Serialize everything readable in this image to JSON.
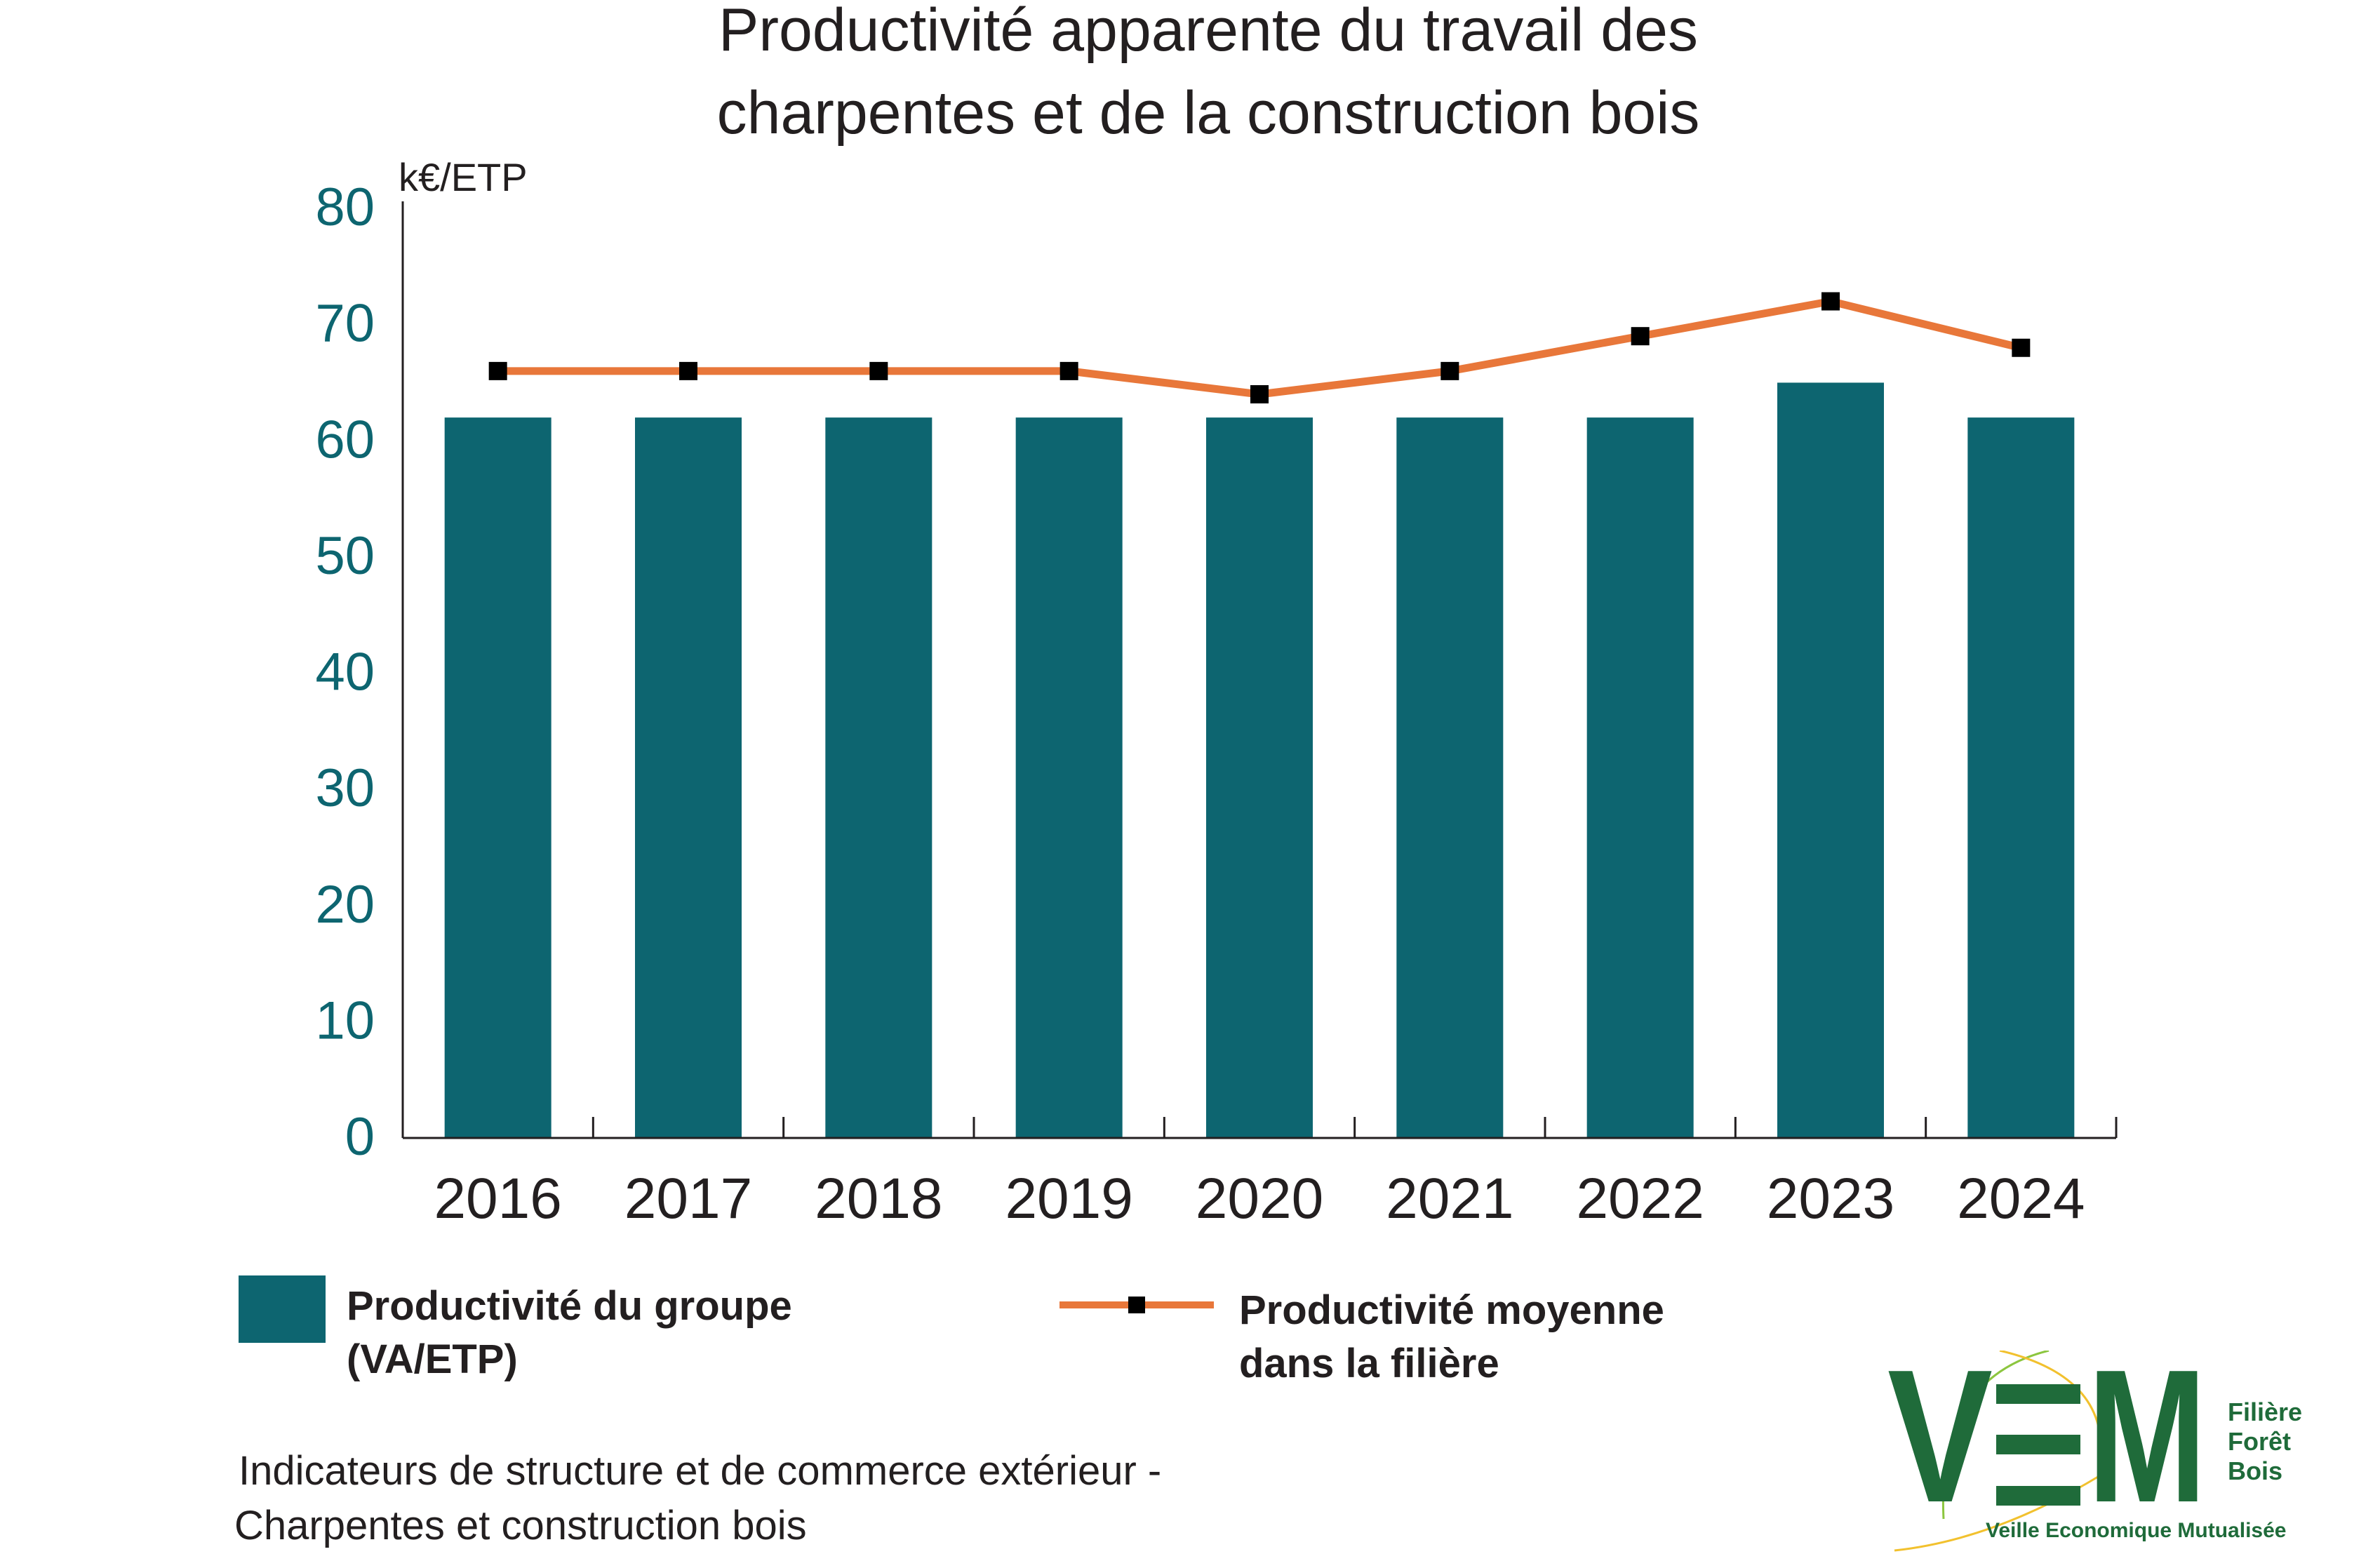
{
  "chart_data": {
    "type": "bar",
    "title_lines": [
      "Productivité apparente du travail des",
      "charpentes et de la construction bois"
    ],
    "unit_label": "k€/ETP",
    "categories": [
      "2016",
      "2017",
      "2018",
      "2019",
      "2020",
      "2021",
      "2022",
      "2023",
      "2024"
    ],
    "y_ticks": [
      "0",
      "10",
      "20",
      "30",
      "40",
      "50",
      "60",
      "70",
      "80"
    ],
    "ylim": [
      0,
      80
    ],
    "grid": false,
    "legend_position": "bottom",
    "series": [
      {
        "name": "Productivité du groupe (VA/ETP)",
        "type": "bar",
        "color": "#0d6570",
        "values": [
          62,
          62,
          62,
          62,
          62,
          62,
          62,
          65,
          62
        ]
      },
      {
        "name": "Productivité moyenne dans la filière",
        "type": "line",
        "color": "#e8773a",
        "marker_color": "#000000",
        "values": [
          66,
          66,
          66,
          66,
          64,
          66,
          69,
          72,
          68
        ]
      }
    ]
  },
  "legend": {
    "bar_label_lines": [
      "Productivité du groupe",
      "(VA/ETP)"
    ],
    "line_label_lines": [
      "Productivité moyenne",
      "dans la filière"
    ]
  },
  "source_lines": [
    "Indicateurs de structure et de commerce extérieur -",
    "Charpentes et construction bois"
  ],
  "logo": {
    "letters": [
      "V",
      "E",
      "M"
    ],
    "side_lines": [
      "Filière",
      "Forêt",
      "Bois"
    ],
    "tagline": "Veille Economique Mutualisée",
    "color": "#1f6b3a"
  }
}
